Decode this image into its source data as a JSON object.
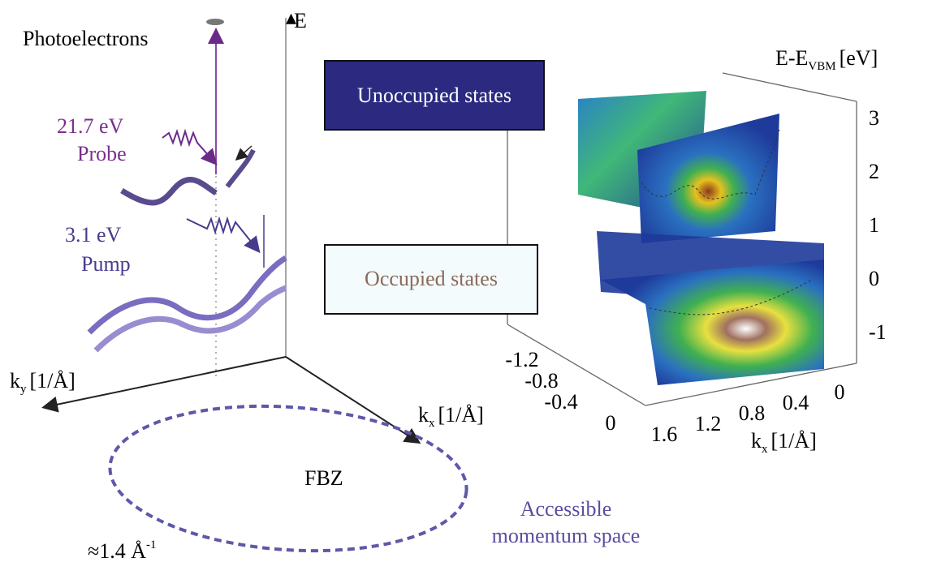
{
  "labels": {
    "photoelectrons": "Photoelectrons",
    "energy_axis": "E",
    "probe_energy": "21.7 eV",
    "probe": "Probe",
    "pump_energy": "3.1 eV",
    "pump": "Pump",
    "ky_axis": {
      "symbol": "k",
      "subscript": "y",
      "unit": "[1/Å]"
    },
    "kx_axis": {
      "symbol": "k",
      "subscript": "x",
      "unit": "[1/Å]"
    },
    "fbz": "FBZ",
    "accessible": [
      "Accessible",
      "momentum space"
    ],
    "fbz_size": {
      "text": "≈1.4 Å",
      "superscript": "-1"
    }
  },
  "panel": {
    "unoccupied": "Unoccupied states",
    "occupied": "Occupied states",
    "energy_axis": {
      "symbol": "E-E",
      "subscript": "VBM",
      "unit": "[eV]"
    },
    "energy_ticks": [
      3,
      2,
      1,
      0,
      -1
    ],
    "ky_ticks": [
      -1.2,
      -0.8,
      -0.4,
      0
    ],
    "kx_ticks": [
      1.6,
      1.2,
      0.8,
      0.4,
      0
    ],
    "kx_axis": {
      "symbol": "k",
      "subscript": "x",
      "unit": "[1/Å]"
    }
  }
}
